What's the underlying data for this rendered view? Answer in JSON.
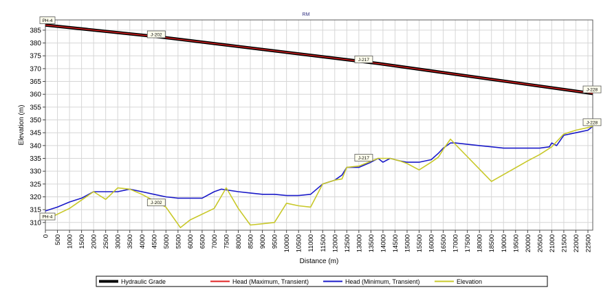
{
  "chart_data": {
    "type": "line",
    "title": "RM",
    "xlabel": "Distance (m)",
    "ylabel": "Elevation (m)",
    "xlim": [
      0,
      22700
    ],
    "ylim": [
      307,
      389
    ],
    "grid": true,
    "legend_placement": "bottom",
    "x_ticks": [
      0,
      500,
      1000,
      1500,
      2000,
      2500,
      3000,
      3500,
      4000,
      4500,
      5000,
      5500,
      6000,
      6500,
      7000,
      7500,
      8000,
      8500,
      9000,
      9500,
      10000,
      10500,
      11000,
      11500,
      12000,
      12500,
      13000,
      13500,
      14000,
      14500,
      15000,
      15500,
      16000,
      16500,
      17000,
      17500,
      18000,
      18500,
      19000,
      19500,
      20000,
      20500,
      21000,
      21500,
      22000,
      22500
    ],
    "y_ticks": [
      310,
      315,
      320,
      325,
      330,
      335,
      340,
      345,
      350,
      355,
      360,
      365,
      370,
      375,
      380,
      385
    ],
    "series": [
      {
        "name": "Hydraulic Grade",
        "color": "#000000",
        "x": [
          0,
          4800,
          13800,
          22700
        ],
        "y": [
          387,
          382.3,
          372,
          360.3
        ]
      },
      {
        "name": "Head (Maximum, Transient)",
        "color": "#e02020",
        "x": [
          0,
          4800,
          13800,
          22700
        ],
        "y": [
          387,
          382.3,
          372,
          360.3
        ]
      },
      {
        "name": "Head (Minimum, Transient)",
        "color": "#1818c8",
        "x": [
          0,
          500,
          1000,
          1500,
          2000,
          2500,
          3000,
          3500,
          4000,
          4500,
          5000,
          5500,
          6000,
          6500,
          7000,
          7300,
          8000,
          8500,
          9000,
          9500,
          10000,
          10500,
          11000,
          11500,
          12000,
          12300,
          12500,
          13000,
          13500,
          13800,
          14000,
          14300,
          14700,
          15000,
          15500,
          16000,
          16300,
          16500,
          16800,
          17000,
          18000,
          18500,
          19000,
          19500,
          20000,
          20500,
          20900,
          21000,
          21200,
          21500,
          22000,
          22500,
          22700
        ],
        "y": [
          314.5,
          316,
          318,
          319.5,
          322,
          322,
          322,
          323,
          322,
          321,
          320,
          319.5,
          319.5,
          319.5,
          322,
          323,
          322,
          321.5,
          321,
          321,
          320.5,
          320.5,
          321,
          325,
          326.5,
          328.5,
          331.5,
          331.5,
          333.5,
          335,
          333.5,
          335,
          334,
          333.5,
          333.5,
          334.5,
          337,
          339,
          341,
          341,
          340,
          339.5,
          339,
          339,
          339,
          339,
          339.5,
          341,
          340,
          344,
          345,
          346,
          347.5
        ]
      },
      {
        "name": "Elevation",
        "color": "#c8c828",
        "x": [
          0,
          1000,
          2000,
          2500,
          3000,
          3500,
          4000,
          5000,
          5600,
          6000,
          7000,
          7500,
          8000,
          8500,
          9000,
          9500,
          10000,
          10500,
          11000,
          11500,
          12000,
          12300,
          12500,
          13000,
          13800,
          14300,
          14700,
          15000,
          15500,
          16000,
          16300,
          16500,
          16800,
          17000,
          18500,
          20000,
          20500,
          21000,
          21500,
          22000,
          22500,
          22700
        ],
        "y": [
          311,
          315.5,
          322,
          319,
          323.5,
          323,
          321,
          316,
          308,
          311,
          315.5,
          323.5,
          315.5,
          309,
          309.5,
          310,
          317.5,
          316.5,
          316,
          325,
          326.5,
          327,
          331.5,
          332,
          335,
          335,
          334,
          333,
          330.5,
          333.5,
          335.5,
          338.5,
          342.5,
          340.5,
          326,
          334,
          336.5,
          339.5,
          344.5,
          346,
          347,
          347.5
        ]
      }
    ],
    "annotations": [
      {
        "text": "PH-4",
        "x": 0,
        "y": 387
      },
      {
        "text": "J-202",
        "x": 4800,
        "y": 382.3
      },
      {
        "text": "J-217",
        "x": 13800,
        "y": 372
      },
      {
        "text": "J-228",
        "x": 22700,
        "y": 360.3
      },
      {
        "text": "PH-4",
        "x": 0,
        "y": 311
      },
      {
        "text": "J-202",
        "x": 4800,
        "y": 317
      },
      {
        "text": "J-217",
        "x": 13800,
        "y": 335
      },
      {
        "text": "J-228",
        "x": 22700,
        "y": 347.5
      }
    ]
  }
}
